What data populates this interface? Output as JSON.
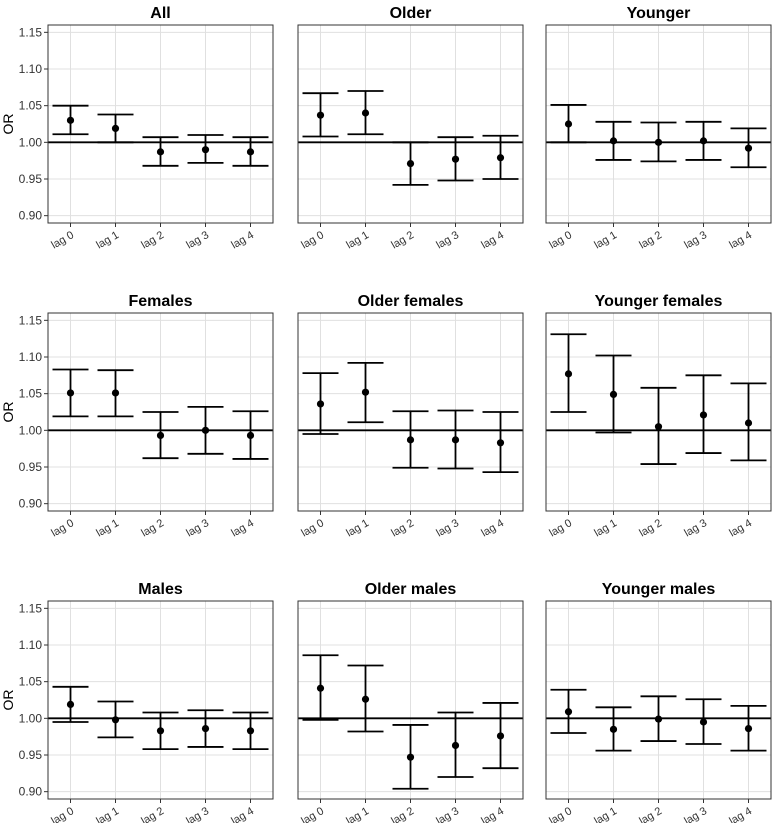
{
  "figure": {
    "ylabel": "OR",
    "y_ticks": [
      "0.90",
      "0.95",
      "1.00",
      "1.05",
      "1.10",
      "1.15"
    ],
    "x_categories": [
      "lag 0",
      "lag 1",
      "lag 2",
      "lag 3",
      "lag 4"
    ],
    "reference_line": 1.0,
    "colors": {
      "mark": "#000000",
      "grid": "#e0e0e0",
      "panel_border": "#333333",
      "background": "#ffffff"
    }
  },
  "chart_data": [
    {
      "type": "scatter",
      "title": "All",
      "categories": [
        "lag 0",
        "lag 1",
        "lag 2",
        "lag 3",
        "lag 4"
      ],
      "estimates": [
        1.03,
        1.019,
        0.987,
        0.99,
        0.987
      ],
      "ci_lower": [
        1.011,
        1.0,
        0.968,
        0.972,
        0.968
      ],
      "ci_upper": [
        1.05,
        1.038,
        1.007,
        1.01,
        1.007
      ],
      "ylabel": "OR",
      "ylim": [
        0.89,
        1.16
      ],
      "grid": true
    },
    {
      "type": "scatter",
      "title": "Older",
      "categories": [
        "lag 0",
        "lag 1",
        "lag 2",
        "lag 3",
        "lag 4"
      ],
      "estimates": [
        1.037,
        1.04,
        0.971,
        0.977,
        0.979
      ],
      "ci_lower": [
        1.008,
        1.011,
        0.942,
        0.948,
        0.95
      ],
      "ci_upper": [
        1.067,
        1.07,
        1.0,
        1.007,
        1.009
      ],
      "ylabel": "",
      "ylim": [
        0.89,
        1.16
      ],
      "grid": true
    },
    {
      "type": "scatter",
      "title": "Younger",
      "categories": [
        "lag 0",
        "lag 1",
        "lag 2",
        "lag 3",
        "lag 4"
      ],
      "estimates": [
        1.025,
        1.002,
        1.0,
        1.002,
        0.992
      ],
      "ci_lower": [
        1.0,
        0.976,
        0.974,
        0.976,
        0.966
      ],
      "ci_upper": [
        1.051,
        1.028,
        1.027,
        1.028,
        1.019
      ],
      "ylabel": "",
      "ylim": [
        0.89,
        1.16
      ],
      "grid": true
    },
    {
      "type": "scatter",
      "title": "Females",
      "categories": [
        "lag 0",
        "lag 1",
        "lag 2",
        "lag 3",
        "lag 4"
      ],
      "estimates": [
        1.051,
        1.051,
        0.993,
        1.0,
        0.993
      ],
      "ci_lower": [
        1.019,
        1.019,
        0.962,
        0.968,
        0.961
      ],
      "ci_upper": [
        1.083,
        1.082,
        1.025,
        1.032,
        1.026
      ],
      "ylabel": "OR",
      "ylim": [
        0.89,
        1.16
      ],
      "grid": true
    },
    {
      "type": "scatter",
      "title": "Older females",
      "categories": [
        "lag 0",
        "lag 1",
        "lag 2",
        "lag 3",
        "lag 4"
      ],
      "estimates": [
        1.036,
        1.052,
        0.987,
        0.987,
        0.983
      ],
      "ci_lower": [
        0.995,
        1.011,
        0.949,
        0.948,
        0.943
      ],
      "ci_upper": [
        1.078,
        1.092,
        1.026,
        1.027,
        1.025
      ],
      "ylabel": "",
      "ylim": [
        0.89,
        1.16
      ],
      "grid": true
    },
    {
      "type": "scatter",
      "title": "Younger females",
      "categories": [
        "lag 0",
        "lag 1",
        "lag 2",
        "lag 3",
        "lag 4"
      ],
      "estimates": [
        1.077,
        1.049,
        1.005,
        1.021,
        1.01
      ],
      "ci_lower": [
        1.025,
        0.997,
        0.954,
        0.969,
        0.959
      ],
      "ci_upper": [
        1.131,
        1.102,
        1.058,
        1.075,
        1.064
      ],
      "ylabel": "",
      "ylim": [
        0.89,
        1.16
      ],
      "grid": true
    },
    {
      "type": "scatter",
      "title": "Males",
      "categories": [
        "lag 0",
        "lag 1",
        "lag 2",
        "lag 3",
        "lag 4"
      ],
      "estimates": [
        1.019,
        0.998,
        0.983,
        0.986,
        0.983
      ],
      "ci_lower": [
        0.995,
        0.974,
        0.958,
        0.961,
        0.958
      ],
      "ci_upper": [
        1.043,
        1.023,
        1.008,
        1.011,
        1.008
      ],
      "ylabel": "OR",
      "ylim": [
        0.89,
        1.16
      ],
      "grid": true
    },
    {
      "type": "scatter",
      "title": "Older males",
      "categories": [
        "lag 0",
        "lag 1",
        "lag 2",
        "lag 3",
        "lag 4"
      ],
      "estimates": [
        1.041,
        1.026,
        0.947,
        0.963,
        0.976
      ],
      "ci_lower": [
        0.998,
        0.982,
        0.904,
        0.92,
        0.932
      ],
      "ci_upper": [
        1.086,
        1.072,
        0.991,
        1.008,
        1.021
      ],
      "ylabel": "",
      "ylim": [
        0.89,
        1.16
      ],
      "grid": true
    },
    {
      "type": "scatter",
      "title": "Younger males",
      "categories": [
        "lag 0",
        "lag 1",
        "lag 2",
        "lag 3",
        "lag 4"
      ],
      "estimates": [
        1.009,
        0.985,
        0.999,
        0.995,
        0.986
      ],
      "ci_lower": [
        0.98,
        0.956,
        0.969,
        0.965,
        0.956
      ],
      "ci_upper": [
        1.039,
        1.015,
        1.03,
        1.026,
        1.017
      ],
      "ylabel": "",
      "ylim": [
        0.89,
        1.16
      ],
      "grid": true
    }
  ]
}
